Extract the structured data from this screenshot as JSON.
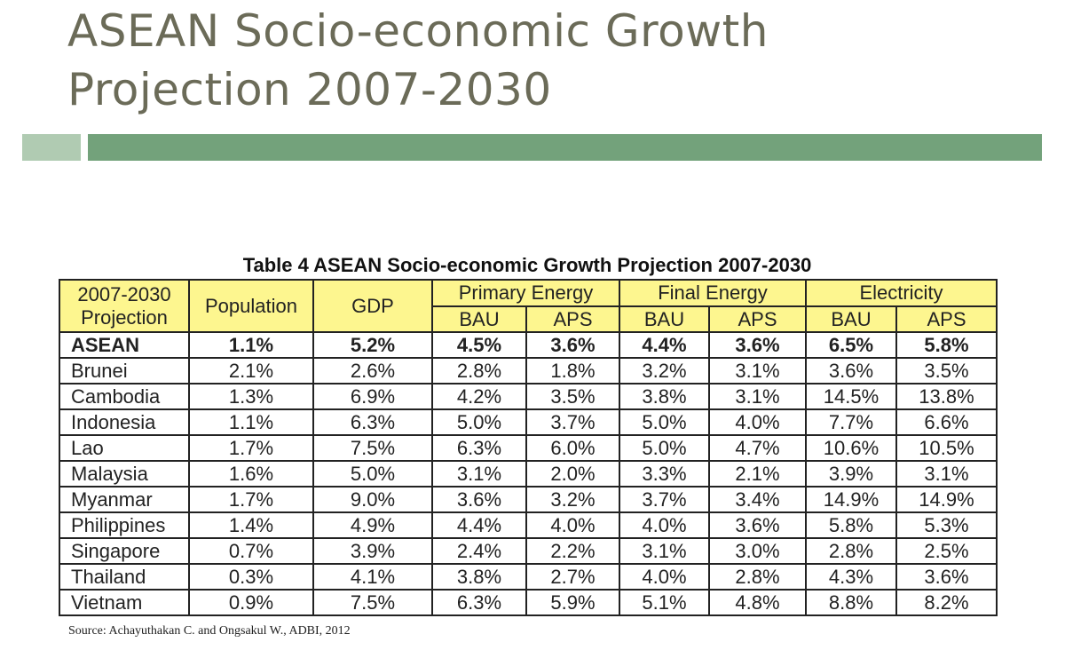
{
  "slide": {
    "title_line1": "ASEAN Socio-economic Growth",
    "title_line2": "Projection 2007-2030",
    "accent_colors": {
      "bar_light": "#b0cbb2",
      "bar_dark": "#73a27b",
      "title": "#6b6b58",
      "header_fill": "#fdf68f"
    }
  },
  "table": {
    "caption": "Table 4 ASEAN Socio-economic Growth Projection 2007-2030",
    "header": {
      "projection_line1": "2007-2030",
      "projection_line2": "Projection",
      "population": "Population",
      "gdp": "GDP",
      "primary_energy": "Primary Energy",
      "final_energy": "Final Energy",
      "electricity": "Electricity",
      "bau": "BAU",
      "aps": "APS"
    },
    "rows": [
      {
        "name": "ASEAN",
        "values": [
          "1.1%",
          "5.2%",
          "4.5%",
          "3.6%",
          "4.4%",
          "3.6%",
          "6.5%",
          "5.8%"
        ]
      },
      {
        "name": "Brunei",
        "values": [
          "2.1%",
          "2.6%",
          "2.8%",
          "1.8%",
          "3.2%",
          "3.1%",
          "3.6%",
          "3.5%"
        ]
      },
      {
        "name": "Cambodia",
        "values": [
          "1.3%",
          "6.9%",
          "4.2%",
          "3.5%",
          "3.8%",
          "3.1%",
          "14.5%",
          "13.8%"
        ]
      },
      {
        "name": "Indonesia",
        "values": [
          "1.1%",
          "6.3%",
          "5.0%",
          "3.7%",
          "5.0%",
          "4.0%",
          "7.7%",
          "6.6%"
        ]
      },
      {
        "name": "Lao",
        "values": [
          "1.7%",
          "7.5%",
          "6.3%",
          "6.0%",
          "5.0%",
          "4.7%",
          "10.6%",
          "10.5%"
        ]
      },
      {
        "name": "Malaysia",
        "values": [
          "1.6%",
          "5.0%",
          "3.1%",
          "2.0%",
          "3.3%",
          "2.1%",
          "3.9%",
          "3.1%"
        ]
      },
      {
        "name": "Myanmar",
        "values": [
          "1.7%",
          "9.0%",
          "3.6%",
          "3.2%",
          "3.7%",
          "3.4%",
          "14.9%",
          "14.9%"
        ]
      },
      {
        "name": "Philippines",
        "values": [
          "1.4%",
          "4.9%",
          "4.4%",
          "4.0%",
          "4.0%",
          "3.6%",
          "5.8%",
          "5.3%"
        ]
      },
      {
        "name": "Singapore",
        "values": [
          "0.7%",
          "3.9%",
          "2.4%",
          "2.2%",
          "3.1%",
          "3.0%",
          "2.8%",
          "2.5%"
        ]
      },
      {
        "name": "Thailand",
        "values": [
          "0.3%",
          "4.1%",
          "3.8%",
          "2.7%",
          "4.0%",
          "2.8%",
          "4.3%",
          "3.6%"
        ]
      },
      {
        "name": "Vietnam",
        "values": [
          "0.9%",
          "7.5%",
          "6.3%",
          "5.9%",
          "5.1%",
          "4.8%",
          "8.8%",
          "8.2%"
        ]
      }
    ],
    "source": "Source: Achayuthakan C. and Ongsakul W., ADBI, 2012"
  }
}
